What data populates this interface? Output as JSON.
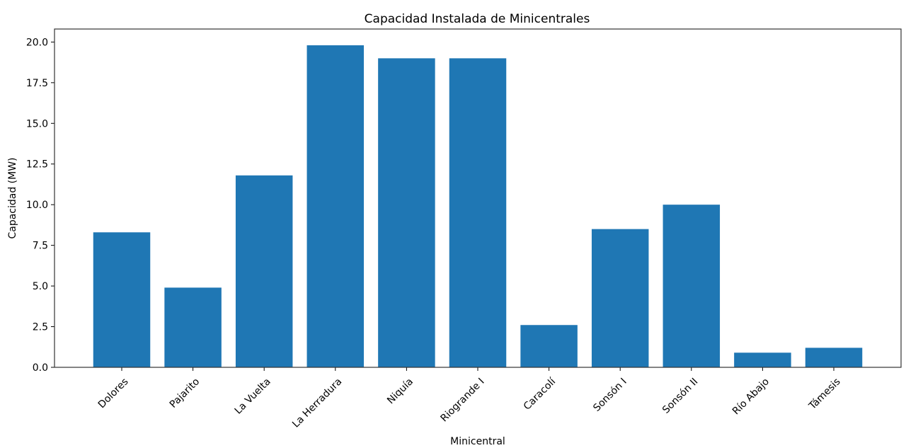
{
  "chart_data": {
    "type": "bar",
    "title": "Capacidad Instalada de Minicentrales",
    "xlabel": "Minicentral",
    "ylabel": "Capacidad (MW)",
    "categories": [
      "Dolores",
      "Pajarito",
      "La Vuelta",
      "La Herradura",
      "Niquía",
      "Riogrande I",
      "Caracolí",
      "Sonsón I",
      "Sonsón II",
      "Río Abajo",
      "Támesis"
    ],
    "values": [
      8.3,
      4.9,
      11.8,
      19.8,
      19.0,
      19.0,
      2.6,
      8.5,
      10.0,
      0.9,
      1.2
    ],
    "ylim": [
      0,
      20.8
    ],
    "yticks": [
      0.0,
      2.5,
      5.0,
      7.5,
      10.0,
      12.5,
      15.0,
      17.5,
      20.0
    ],
    "ytick_labels": [
      "0.0",
      "2.5",
      "5.0",
      "7.5",
      "10.0",
      "12.5",
      "15.0",
      "17.5",
      "20.0"
    ],
    "bar_color": "#1f77b4",
    "grid": false,
    "legend": "none"
  }
}
